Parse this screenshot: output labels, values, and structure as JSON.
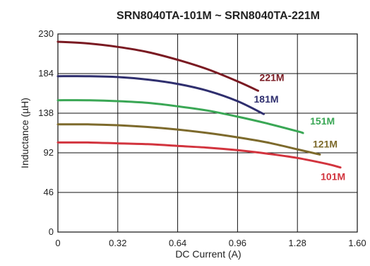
{
  "chart_data": {
    "type": "line",
    "title": "SRN8040TA-101M ~ SRN8040TA-221M",
    "xlabel": "DC Current (A)",
    "ylabel": "Inductance (µH)",
    "xlim": [
      0,
      1.6
    ],
    "ylim": [
      0,
      230
    ],
    "xticks": [
      0,
      0.32,
      0.64,
      0.96,
      1.28,
      1.6
    ],
    "xtick_labels": [
      "0",
      "0.32",
      "0.64",
      "0.96",
      "1.28",
      "1.60"
    ],
    "yticks": [
      0,
      46,
      92,
      138,
      184,
      230
    ],
    "ytick_labels": [
      "0",
      "46",
      "92",
      "138",
      "184",
      "230"
    ],
    "grid": true,
    "series": [
      {
        "name": "221M",
        "color": "#7a1a22",
        "x": [
          0,
          0.16,
          0.32,
          0.48,
          0.64,
          0.8,
          0.96,
          1.07
        ],
        "y": [
          221,
          219,
          215,
          209,
          200,
          189,
          175,
          164
        ]
      },
      {
        "name": "181M",
        "color": "#2f2f6e",
        "x": [
          0,
          0.16,
          0.32,
          0.48,
          0.64,
          0.8,
          0.96,
          1.1
        ],
        "y": [
          181,
          181,
          180,
          177,
          172,
          164,
          152,
          137
        ]
      },
      {
        "name": "151M",
        "color": "#3aa755",
        "x": [
          0,
          0.16,
          0.32,
          0.48,
          0.64,
          0.8,
          0.96,
          1.12,
          1.28,
          1.31
        ],
        "y": [
          153,
          153,
          152,
          150,
          146,
          141,
          134,
          126,
          117,
          115
        ]
      },
      {
        "name": "121M",
        "color": "#7d6a2c",
        "x": [
          0,
          0.16,
          0.32,
          0.48,
          0.64,
          0.8,
          0.96,
          1.12,
          1.28,
          1.4
        ],
        "y": [
          125,
          125,
          124,
          122,
          119,
          115,
          110,
          104,
          96,
          90
        ]
      },
      {
        "name": "101M",
        "color": "#d2343e",
        "x": [
          0,
          0.16,
          0.32,
          0.48,
          0.64,
          0.8,
          0.96,
          1.12,
          1.28,
          1.44,
          1.51
        ],
        "y": [
          104,
          104,
          103,
          102,
          100,
          98,
          95,
          91,
          86,
          79,
          75
        ]
      }
    ]
  }
}
